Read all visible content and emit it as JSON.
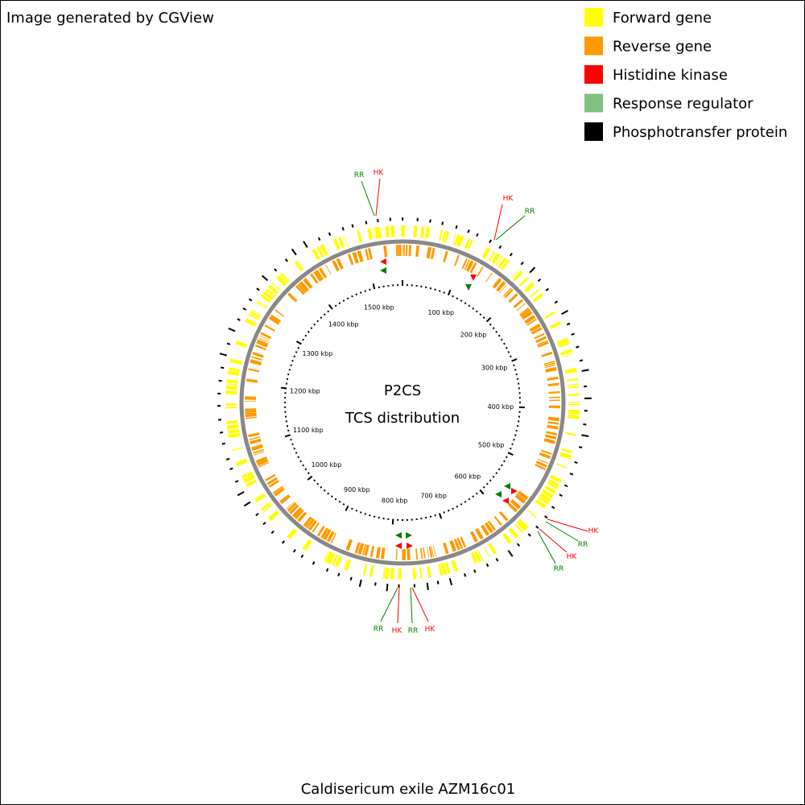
{
  "credit": "Image generated by CGView",
  "legend": [
    {
      "name": "Forward gene",
      "color": "#ffff00"
    },
    {
      "name": "Reverse gene",
      "color": "#ff9900"
    },
    {
      "name": "Histidine kinase",
      "color": "#ff0000"
    },
    {
      "name": "Response regulator",
      "color": "#80c080"
    },
    {
      "name": "Phosphotransfer protein",
      "color": "#000000"
    }
  ],
  "center": {
    "title": "P2CS",
    "subtitle": "TCS distribution"
  },
  "ruler_labels": [
    "100 kbp",
    "200 kbp",
    "300 kbp",
    "400 kbp",
    "500 kbp",
    "600 kbp",
    "700 kbp",
    "800 kbp",
    "900 kbp",
    "1000 kbp",
    "1100 kbp",
    "1200 kbp",
    "1300 kbp",
    "1400 kbp",
    "1500 kbp"
  ],
  "features": [
    "RR",
    "HK",
    "HK",
    "RR",
    "HK",
    "RR",
    "HK",
    "RR",
    "RR",
    "HK",
    "RR",
    "HK"
  ],
  "caption": "Caldisericum exile AZM16c01"
}
